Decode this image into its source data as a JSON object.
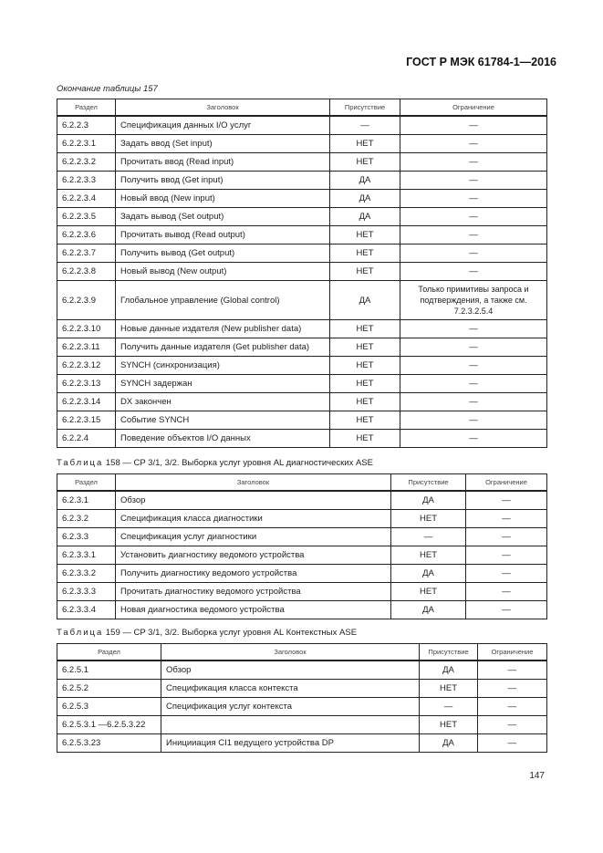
{
  "header": {
    "title": "ГОСТ Р МЭК 61784-1—2016"
  },
  "tables": [
    {
      "caption": "Окончание таблицы 157",
      "columns": [
        "Раздел",
        "Заголовок",
        "Присутствие",
        "Ограничение"
      ],
      "rows": [
        [
          "6.2.2.3",
          "Спецификация данных I/O услуг",
          "—",
          "—"
        ],
        [
          "6.2.2.3.1",
          "Задать ввод (Set input)",
          "НЕТ",
          "—"
        ],
        [
          "6.2.2.3.2",
          "Прочитать ввод (Read input)",
          "НЕТ",
          "—"
        ],
        [
          "6.2.2.3.3",
          "Получить ввод (Get input)",
          "ДА",
          "—"
        ],
        [
          "6.2.2.3.4",
          "Новый ввод (New input)",
          "ДА",
          "—"
        ],
        [
          "6.2.2.3.5",
          "Задать вывод (Set output)",
          "ДА",
          "—"
        ],
        [
          "6.2.2.3.6",
          "Прочитать вывод (Read output)",
          "НЕТ",
          "—"
        ],
        [
          "6.2.2.3.7",
          "Получить вывод (Get output)",
          "НЕТ",
          "—"
        ],
        [
          "6.2.2.3.8",
          "Новый вывод (New output)",
          "НЕТ",
          "—"
        ],
        [
          "6.2.2.3.9",
          "Глобальное управление (Global control)",
          "ДА",
          "Только примитивы запроса и подтверждения, а также см. 7.2.3.2.5.4"
        ],
        [
          "6.2.2.3.10",
          "Новые данные издателя (New publisher data)",
          "НЕТ",
          "—"
        ],
        [
          "6.2.2.3.11",
          "Получить данные издателя (Get publisher data)",
          "НЕТ",
          "—"
        ],
        [
          "6.2.2.3.12",
          "SYNCH (синхронизация)",
          "НЕТ",
          "—"
        ],
        [
          "6.2.2.3.13",
          "SYNCH задержан",
          "НЕТ",
          "—"
        ],
        [
          "6.2.2.3.14",
          "DX закончен",
          "НЕТ",
          "—"
        ],
        [
          "6.2.2.3.15",
          "Событие SYNCH",
          "НЕТ",
          "—"
        ],
        [
          "6.2.2.4",
          "Поведение объектов I/O данных",
          "НЕТ",
          "—"
        ]
      ]
    },
    {
      "caption_prefix": "Таблица",
      "caption": "158 — CP 3/1, 3/2. Выборка услуг уровня AL диагностических ASE",
      "columns": [
        "Раздел",
        "Заголовок",
        "Присутствие",
        "Ограничение"
      ],
      "rows": [
        [
          "6.2.3.1",
          "Обзор",
          "ДА",
          "—"
        ],
        [
          "6.2.3.2",
          "Спецификация класса диагностики",
          "НЕТ",
          "—"
        ],
        [
          "6.2.3.3",
          "Спецификация услуг диагностики",
          "—",
          "—"
        ],
        [
          "6.2.3.3.1",
          "Установить диагностику ведомого устройства",
          "НЕТ",
          "—"
        ],
        [
          "6.2.3.3.2",
          "Получить диагностику ведомого устройства",
          "ДА",
          "—"
        ],
        [
          "6.2.3.3.3",
          "Прочитать диагностику ведомого устройства",
          "НЕТ",
          "—"
        ],
        [
          "6.2.3.3.4",
          "Новая диагностика ведомого устройства",
          "ДА",
          "—"
        ]
      ]
    },
    {
      "caption_prefix": "Таблица",
      "caption": "159 — CP 3/1, 3/2. Выборка услуг уровня AL Контекстных ASE",
      "columns": [
        "Раздел",
        "Заголовок",
        "Присутствие",
        "Ограничение"
      ],
      "rows": [
        [
          "6.2.5.1",
          "Обзор",
          "ДА",
          "—"
        ],
        [
          "6.2.5.2",
          "Спецификация класса контекста",
          "НЕТ",
          "—"
        ],
        [
          "6.2.5.3",
          "Спецификация услуг контекста",
          "—",
          "—"
        ],
        [
          "6.2.5.3.1 —6.2.5.3.22",
          "",
          "НЕТ",
          "—"
        ],
        [
          "6.2.5.3.23",
          "Иницииация CI1 ведущего устройства DP",
          "ДА",
          "—"
        ]
      ]
    }
  ],
  "footer": {
    "page_number": "147"
  }
}
